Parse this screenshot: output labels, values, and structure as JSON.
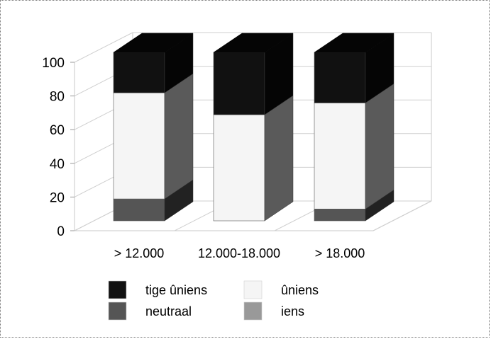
{
  "chart_data": {
    "type": "bar",
    "stacked": true,
    "three_d": true,
    "categories": [
      "> 12.000",
      "12.000-18.000",
      "> 18.000"
    ],
    "series": [
      {
        "name": "iens",
        "values": [
          0,
          0,
          0
        ],
        "color": "#999999",
        "side": "#7f7f7f"
      },
      {
        "name": "neutraal",
        "values": [
          13,
          0,
          7
        ],
        "color": "#555555",
        "side": "#222222"
      },
      {
        "name": "ûniens",
        "values": [
          63,
          63,
          63
        ],
        "color": "#f5f5f5",
        "side": "#5a5a5a"
      },
      {
        "name": "tige ûniens",
        "values": [
          24,
          37,
          30
        ],
        "color": "#111111",
        "side": "#050505"
      }
    ],
    "ylim": [
      0,
      100
    ],
    "yticks": [
      "0",
      "20",
      "40",
      "60",
      "80",
      "100"
    ],
    "grid": true,
    "legend": [
      {
        "name": "tige ûniens",
        "color": "#111111"
      },
      {
        "name": "ûniens",
        "color": "#f5f5f5"
      },
      {
        "name": "neutraal",
        "color": "#555555"
      },
      {
        "name": "iens",
        "color": "#999999"
      }
    ],
    "legend_position": "bottom"
  }
}
